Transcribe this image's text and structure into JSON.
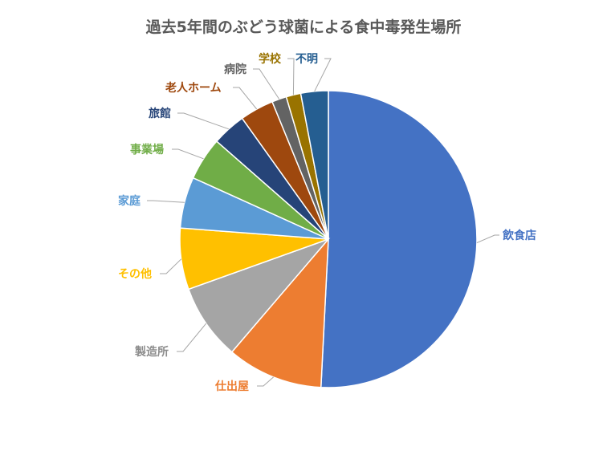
{
  "chart_data": {
    "type": "pie",
    "title": "過去5年間のぶどう球菌による食中毒発生場所",
    "unit": "",
    "slices": [
      {
        "label": "飲食店",
        "value": 51.0,
        "color": "#4472C4"
      },
      {
        "label": "仕出屋",
        "value": 10.5,
        "color": "#ED7D31"
      },
      {
        "label": "製造所",
        "value": 8.3,
        "color": "#A5A5A5"
      },
      {
        "label": "その他",
        "value": 6.7,
        "color": "#FFC000"
      },
      {
        "label": "家庭",
        "value": 5.6,
        "color": "#5B9BD5"
      },
      {
        "label": "事業場",
        "value": 4.7,
        "color": "#70AD47"
      },
      {
        "label": "旅館",
        "value": 3.7,
        "color": "#264478"
      },
      {
        "label": "老人ホーム",
        "value": 3.7,
        "color": "#9E480E"
      },
      {
        "label": "病院",
        "value": 1.6,
        "color": "#636363"
      },
      {
        "label": "学校",
        "value": 1.6,
        "color": "#997300"
      },
      {
        "label": "不明",
        "value": 3.0,
        "color": "#255E91"
      }
    ],
    "legend": "none",
    "data_labels": "category-name-outside"
  }
}
